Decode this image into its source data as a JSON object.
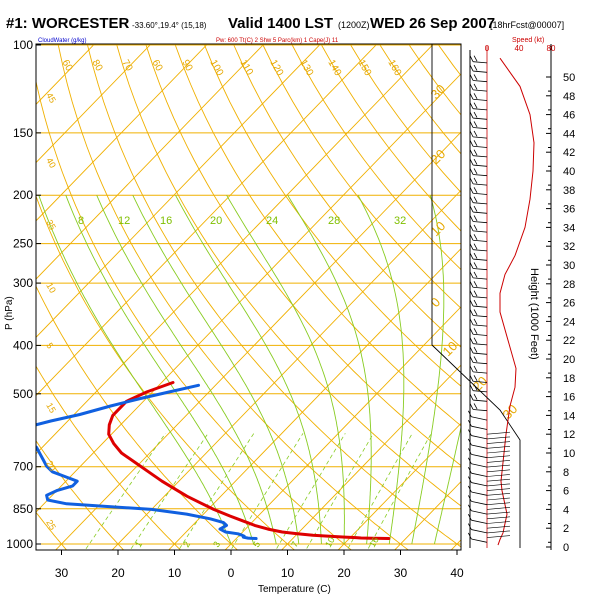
{
  "header": {
    "station": "#1: WORCESTER",
    "coords": "-33.60°,19.4° (15,18)",
    "valid": "Valid 1400 LST",
    "utc": "(1200Z)",
    "date": "WED 26 Sep 2007",
    "forecast": "[18hrFcst@00007]",
    "speed_label": "Speed (kt)",
    "cloudwater_label": "CloudWater (g/kg)",
    "indices_label": "Pw: 600 Tt(C)  2 Shw  5 Parc(km) 1 Cape(J)  11"
  },
  "colors": {
    "temperature": "#dd0000",
    "dewpoint": "#1060e0",
    "isotherm": "#f0b000",
    "mixing_ratio": "#88cc22",
    "dry_adiabat": "#f0b000",
    "moist_adiabat": "#88cc22",
    "height_profile": "#cc0000"
  },
  "chart_data": {
    "type": "line",
    "subtype": "skew-t log-p",
    "xlabel": "Temperature (C)",
    "ylabel": "P (hPa)",
    "y2label": "Height (1000 Feet)",
    "xlim": [
      -35,
      48
    ],
    "ylim": [
      1000,
      100
    ],
    "y_scale": "log",
    "x_ticks": [
      -30,
      -20,
      -10,
      0,
      10,
      20,
      30,
      40
    ],
    "x_tick_labels": [
      "30",
      "20",
      "10",
      "0",
      "10",
      "20",
      "30",
      "40"
    ],
    "pressure_ticks": [
      100,
      150,
      200,
      250,
      300,
      400,
      500,
      700,
      850,
      1000
    ],
    "height_ticks": [
      0,
      2,
      4,
      6,
      8,
      10,
      12,
      14,
      16,
      18,
      20,
      22,
      24,
      26,
      28,
      30,
      32,
      34,
      36,
      38,
      40,
      42,
      44,
      46,
      48,
      50
    ],
    "speed_ticks": [
      "0",
      "40",
      "80"
    ],
    "isotherm_labels": [
      "-40",
      "-30",
      "-20",
      "-10",
      "0",
      "10",
      "20",
      "30",
      "40"
    ],
    "isotherm_values": [
      -40,
      -30,
      -20,
      -10,
      0,
      10,
      20,
      30,
      40
    ],
    "top_labels": [
      "60",
      "80",
      "70",
      "60",
      "90",
      "100",
      "110",
      "120",
      "130",
      "140",
      "150",
      "160"
    ],
    "mixing_ratio_labels": [
      "8",
      "12",
      "16",
      "20",
      "24",
      "28",
      "32"
    ],
    "series": [
      {
        "name": "temperature",
        "points": [
          [
            900,
            27
          ],
          [
            930,
            24
          ],
          [
            960,
            22
          ],
          [
            1000,
            21
          ],
          [
            1050,
            19
          ],
          [
            1130,
            16.5
          ],
          [
            1250,
            13
          ],
          [
            1400,
            10
          ],
          [
            1600,
            7
          ],
          [
            1900,
            4
          ],
          [
            2300,
            1
          ],
          [
            2800,
            -2
          ],
          [
            3300,
            -5
          ],
          [
            4000,
            -9
          ],
          [
            4700,
            -12.5
          ],
          [
            5400,
            -16
          ],
          [
            6200,
            -19.5
          ],
          [
            7000,
            -23
          ],
          [
            8000,
            -27
          ],
          [
            9000,
            -31
          ],
          [
            10000,
            -35
          ],
          [
            11000,
            -38
          ],
          [
            12000,
            -40.5
          ],
          [
            13000,
            -42
          ],
          [
            14000,
            -43
          ],
          [
            15500,
            -43
          ],
          [
            16500,
            -41
          ],
          [
            17500,
            -38
          ]
        ]
      },
      {
        "name": "dewpoint",
        "points": [
          [
            900,
            3.5
          ],
          [
            950,
            2
          ],
          [
            1050,
            1
          ],
          [
            1150,
            1
          ],
          [
            1250,
            0.5
          ],
          [
            1400,
            -0.5
          ],
          [
            1600,
            -3
          ],
          [
            1900,
            -4.5
          ],
          [
            2300,
            -4
          ],
          [
            2600,
            -5
          ],
          [
            3000,
            -8
          ],
          [
            3500,
            -13
          ],
          [
            4000,
            -20
          ],
          [
            4300,
            -28
          ],
          [
            4600,
            -36
          ],
          [
            5000,
            -40
          ],
          [
            5500,
            -41
          ],
          [
            6000,
            -40
          ],
          [
            6500,
            -38
          ],
          [
            7000,
            -38
          ],
          [
            7500,
            -41
          ],
          [
            8000,
            -44
          ],
          [
            8600,
            -46
          ],
          [
            9200,
            -47.5
          ],
          [
            9800,
            -49
          ],
          [
            10600,
            -51
          ],
          [
            11400,
            -54
          ],
          [
            12000,
            -56
          ],
          [
            12400,
            -57
          ],
          [
            12800,
            -56
          ],
          [
            13400,
            -53
          ],
          [
            14100,
            -49
          ],
          [
            15000,
            -45
          ],
          [
            15800,
            -41
          ],
          [
            16500,
            -37
          ],
          [
            17200,
            -33
          ]
        ]
      }
    ]
  }
}
